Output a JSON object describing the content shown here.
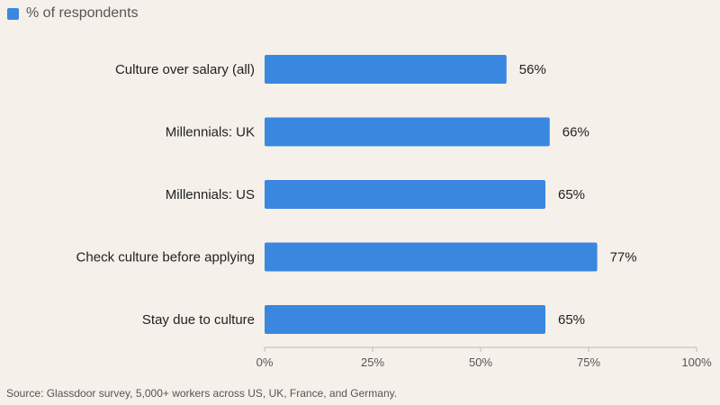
{
  "chart_data": {
    "type": "bar",
    "orientation": "horizontal",
    "categories": [
      "Culture over salary (all)",
      "Millennials: UK",
      "Millennials: US",
      "Check culture before applying",
      "Stay due to culture"
    ],
    "series": [
      {
        "name": "% of respondents",
        "values": [
          56,
          66,
          65,
          77,
          65
        ],
        "color": "#3a87e0"
      }
    ],
    "data_labels": [
      "56%",
      "66%",
      "65%",
      "77%",
      "65%"
    ],
    "xlim": [
      0,
      100
    ],
    "xticks": [
      0,
      25,
      50,
      75,
      100
    ],
    "xtick_labels": [
      "0%",
      "25%",
      "50%",
      "75%",
      "100%"
    ],
    "legend_position": "top-left",
    "grid": false,
    "source": "Source: Glassdoor survey, 5,000+ workers across US, UK, France, and Germany."
  }
}
